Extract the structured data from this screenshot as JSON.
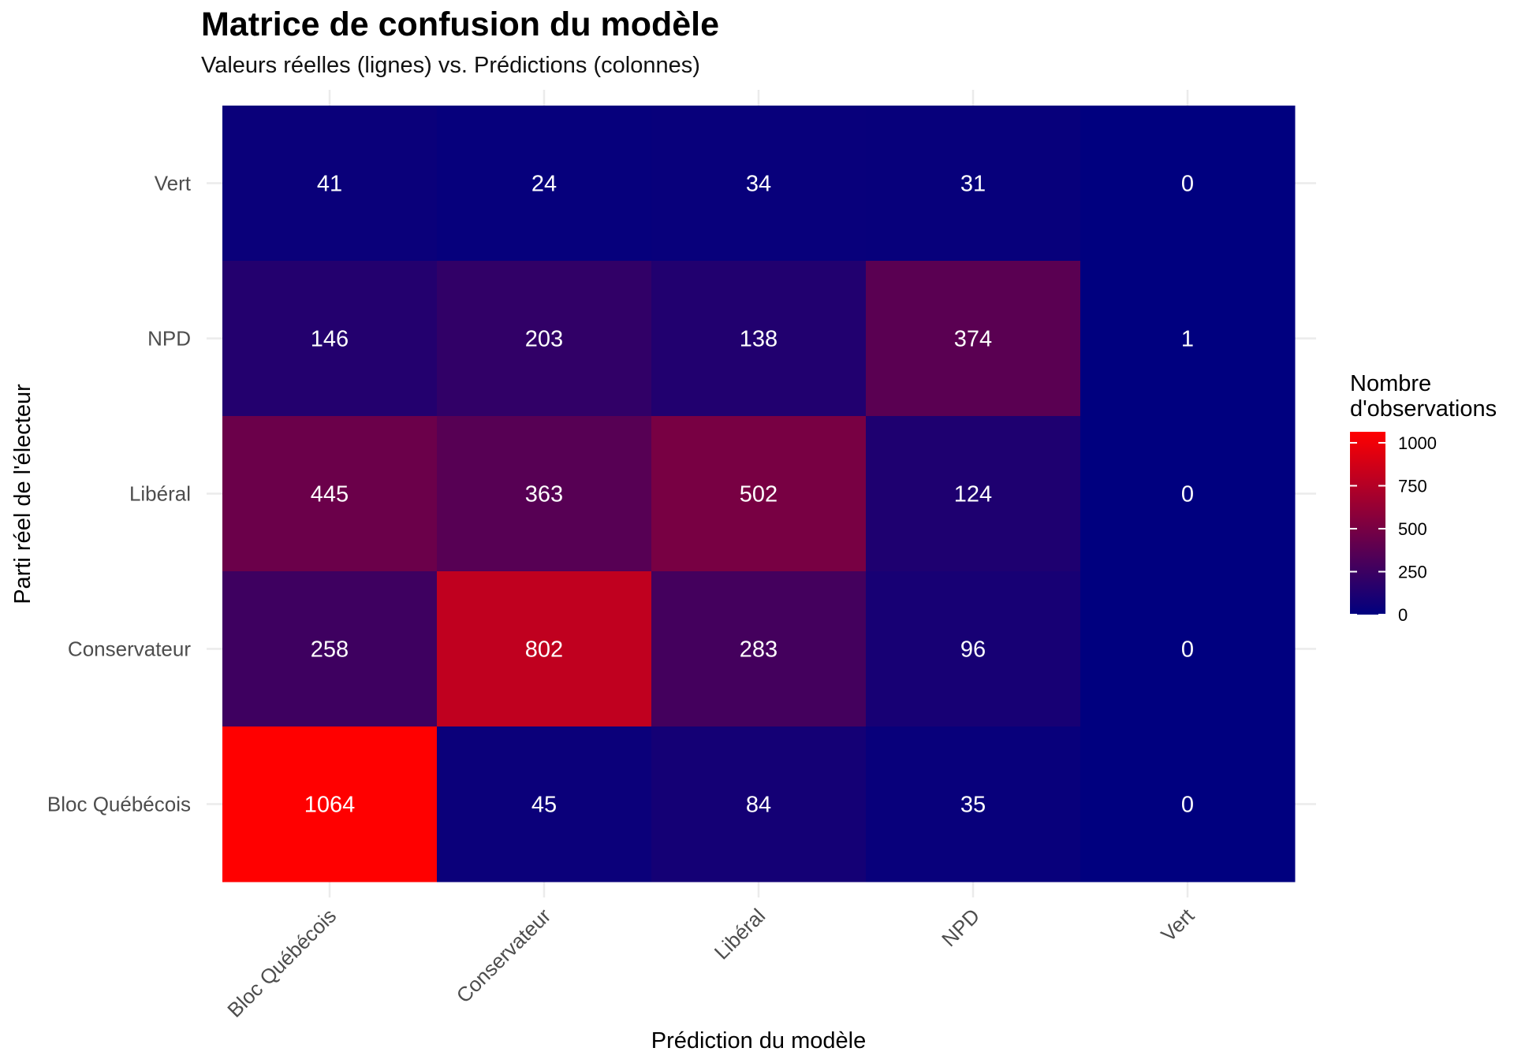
{
  "chart_data": {
    "type": "heatmap",
    "title": "Matrice de confusion du modèle",
    "subtitle": "Valeurs réelles (lignes) vs. Prédictions (colonnes)",
    "xlabel": "Prédiction du modèle",
    "ylabel": "Parti réel de l'électeur",
    "x_categories": [
      "Bloc Québécois",
      "Conservateur",
      "Libéral",
      "NPD",
      "Vert"
    ],
    "y_categories_top_to_bottom": [
      "Vert",
      "NPD",
      "Libéral",
      "Conservateur",
      "Bloc Québécois"
    ],
    "values": [
      [
        41,
        24,
        34,
        31,
        0
      ],
      [
        146,
        203,
        138,
        374,
        1
      ],
      [
        445,
        363,
        502,
        124,
        0
      ],
      [
        258,
        802,
        283,
        96,
        0
      ],
      [
        1064,
        45,
        84,
        35,
        0
      ]
    ],
    "color_scale": {
      "low": "#00007f",
      "high": "#ff0000",
      "min": 0,
      "max": 1064
    },
    "legend": {
      "title_lines": [
        "Nombre",
        "d'observations"
      ],
      "ticks": [
        0,
        250,
        500,
        750,
        1000
      ],
      "position": "right"
    }
  }
}
